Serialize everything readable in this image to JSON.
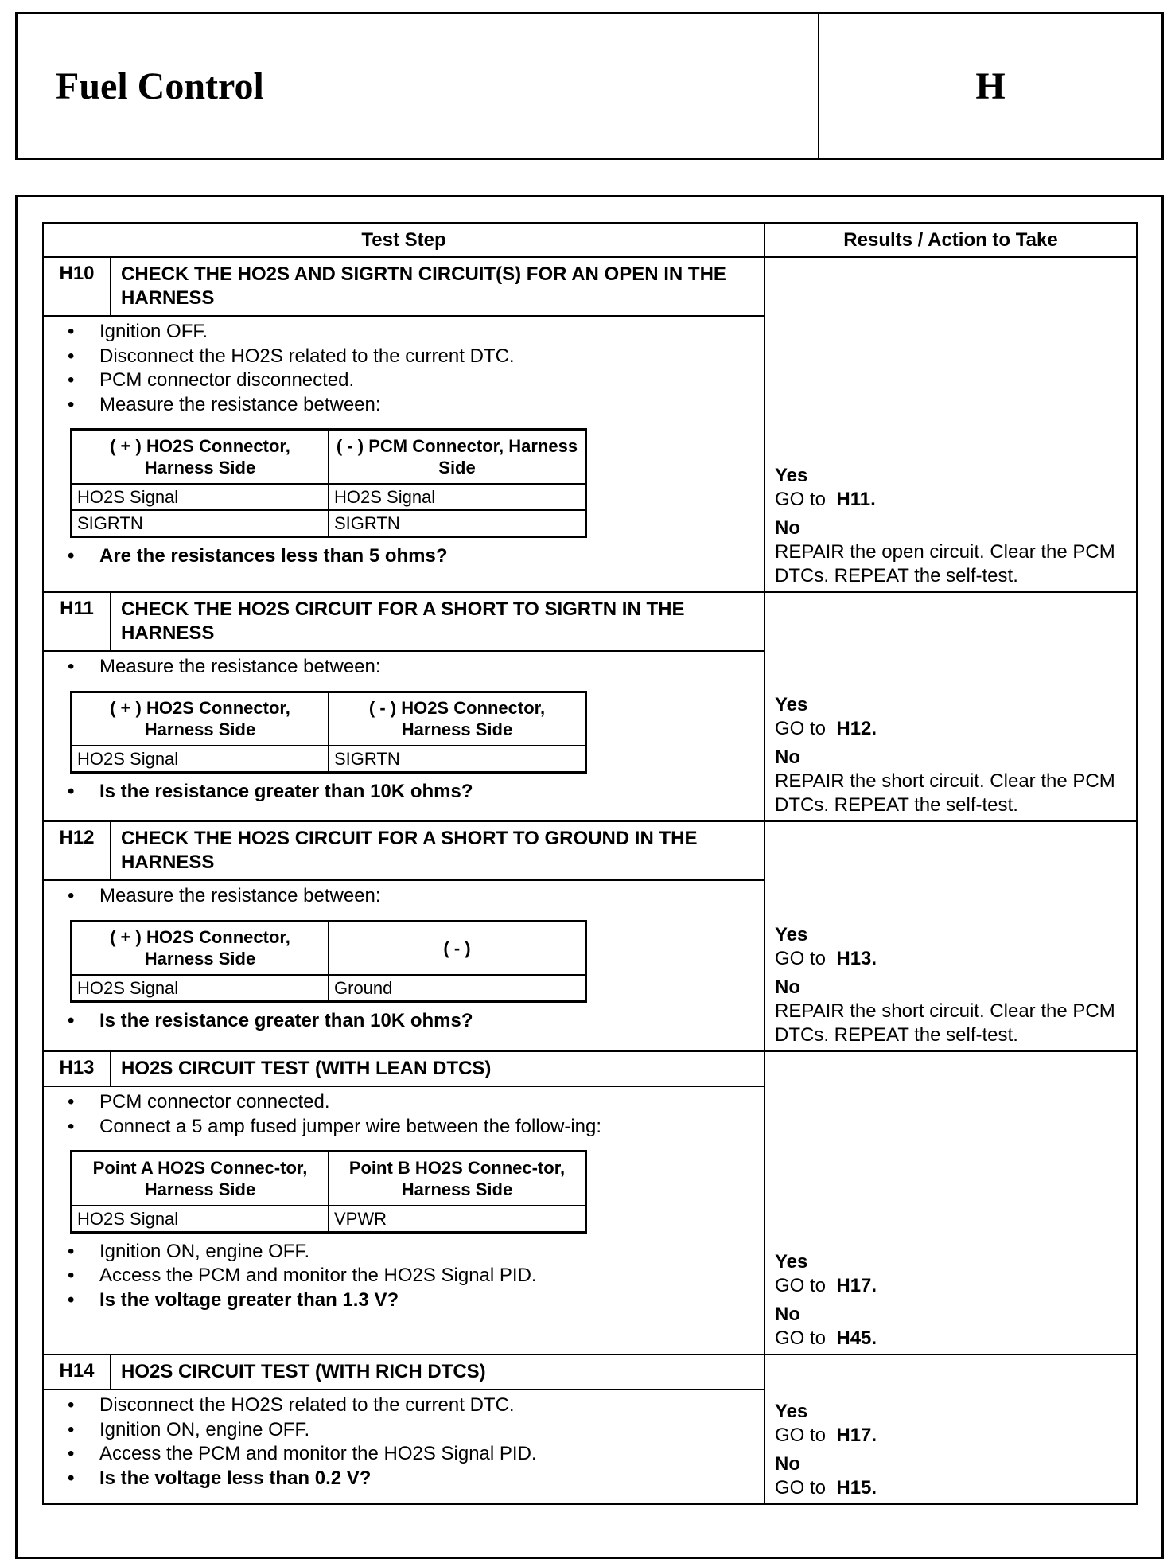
{
  "header": {
    "title": "Fuel Control",
    "section": "H"
  },
  "table": {
    "col_step": "Test Step",
    "col_results": "Results / Action to Take"
  },
  "steps": [
    {
      "id": "H10",
      "title": "CHECK THE HO2S AND SIGRTN CIRCUIT(S) FOR AN OPEN IN THE HARNESS",
      "pre": [
        "Ignition OFF.",
        "Disconnect the HO2S related to the current DTC.",
        "PCM connector disconnected.",
        "Measure the resistance between:"
      ],
      "conn": {
        "h": [
          "( + ) HO2S Connector, Harness Side",
          "( - ) PCM Connector, Harness Side"
        ],
        "rows": [
          [
            "HO2S Signal",
            "HO2S Signal"
          ],
          [
            "SIGRTN",
            "SIGRTN"
          ]
        ]
      },
      "post": [],
      "question": "Are the resistances less than 5 ohms?",
      "yes": "Yes",
      "yes_text": "GO to",
      "yes_ref": "H11.",
      "no": "No",
      "no_text": "REPAIR the open circuit. Clear the PCM DTCs. REPEAT the self-test.",
      "no_ref": ""
    },
    {
      "id": "H11",
      "title": "CHECK THE HO2S CIRCUIT FOR A SHORT TO SIGRTN IN THE HARNESS",
      "pre": [
        "Measure the resistance between:"
      ],
      "conn": {
        "h": [
          "( + ) HO2S Connector, Harness Side",
          "( - ) HO2S Connector, Harness Side"
        ],
        "rows": [
          [
            "HO2S Signal",
            "SIGRTN"
          ]
        ]
      },
      "post": [],
      "question": "Is the resistance greater than 10K ohms?",
      "yes": "Yes",
      "yes_text": "GO to",
      "yes_ref": "H12.",
      "no": "No",
      "no_text": "REPAIR the short circuit. Clear the PCM DTCs. REPEAT the self-test.",
      "no_ref": ""
    },
    {
      "id": "H12",
      "title": "CHECK THE HO2S CIRCUIT FOR A SHORT TO GROUND IN THE HARNESS",
      "pre": [
        "Measure the resistance between:"
      ],
      "conn": {
        "h": [
          "( + ) HO2S Connector, Harness Side",
          "( - )"
        ],
        "rows": [
          [
            "HO2S Signal",
            "Ground"
          ]
        ]
      },
      "post": [],
      "question": "Is the resistance greater than 10K ohms?",
      "yes": "Yes",
      "yes_text": "GO to",
      "yes_ref": "H13.",
      "no": "No",
      "no_text": "REPAIR the short circuit. Clear the PCM DTCs. REPEAT the self-test.",
      "no_ref": ""
    },
    {
      "id": "H13",
      "title": "HO2S CIRCUIT TEST (WITH LEAN DTCS)",
      "pre": [
        "PCM connector connected.",
        "Connect a 5 amp fused jumper wire between the follow-ing:"
      ],
      "conn": {
        "h": [
          "Point A HO2S Connec-tor, Harness Side",
          "Point B HO2S Connec-tor, Harness Side"
        ],
        "rows": [
          [
            "HO2S Signal",
            "VPWR"
          ]
        ]
      },
      "post": [
        "Ignition ON, engine OFF.",
        "Access the PCM and monitor the HO2S Signal PID."
      ],
      "question": "Is the voltage greater than 1.3 V?",
      "yes": "Yes",
      "yes_text": "GO to",
      "yes_ref": "H17.",
      "no": "No",
      "no_text": "GO to",
      "no_ref": "H45."
    },
    {
      "id": "H14",
      "title": "HO2S CIRCUIT TEST (WITH RICH DTCS)",
      "pre": [
        "Disconnect the HO2S related to the current DTC.",
        "Ignition ON, engine OFF.",
        "Access the PCM and monitor the HO2S Signal PID."
      ],
      "conn": null,
      "post": [],
      "question": "Is the voltage less than 0.2 V?",
      "yes": "Yes",
      "yes_text": "GO to",
      "yes_ref": "H17.",
      "no": "No",
      "no_text": "GO to",
      "no_ref": "H15."
    }
  ]
}
